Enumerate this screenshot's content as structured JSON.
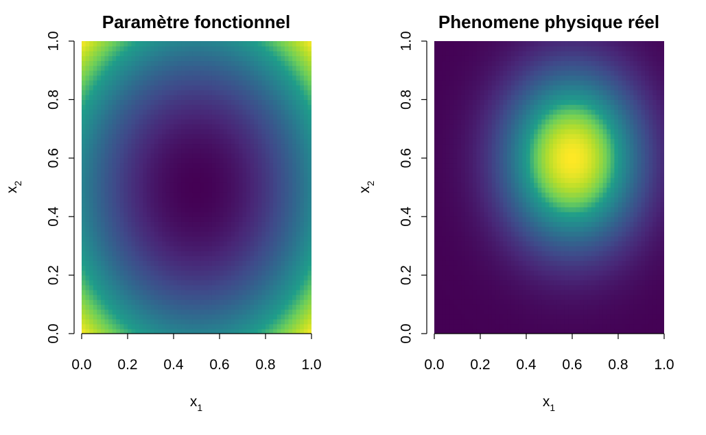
{
  "chart_data": [
    {
      "type": "heatmap",
      "title": "Paramètre fonctionnel",
      "xlabel": {
        "base": "x",
        "subscript": "1"
      },
      "ylabel": {
        "base": "x",
        "subscript": "2"
      },
      "xlim": [
        0,
        1
      ],
      "ylim": [
        0,
        1
      ],
      "x_ticks": [
        "0.0",
        "0.2",
        "0.4",
        "0.6",
        "0.8",
        "1.0"
      ],
      "y_ticks": [
        "0.0",
        "0.2",
        "0.4",
        "0.6",
        "0.8",
        "1.0"
      ],
      "colormap": "viridis",
      "field": {
        "kind": "radial_distance",
        "center": [
          0.5,
          0.5
        ],
        "shape": "minimum at center, maximum at corners"
      },
      "legend": false,
      "grid": false
    },
    {
      "type": "heatmap",
      "title": "Phenomene physique réel",
      "xlabel": {
        "base": "x",
        "subscript": "1"
      },
      "ylabel": {
        "base": "x",
        "subscript": "2"
      },
      "xlim": [
        0,
        1
      ],
      "ylim": [
        0,
        1
      ],
      "x_ticks": [
        "0.0",
        "0.2",
        "0.4",
        "0.6",
        "0.8",
        "1.0"
      ],
      "y_ticks": [
        "0.0",
        "0.2",
        "0.4",
        "0.6",
        "0.8",
        "1.0"
      ],
      "colormap": "viridis",
      "field": {
        "kind": "gaussian_bump",
        "center": [
          0.6,
          0.6
        ],
        "spread": 0.2,
        "shape": "maximum near (0.6, 0.6), minimum toward edges"
      },
      "legend": false,
      "grid": false
    }
  ],
  "colors": {
    "viridis": [
      "#440154",
      "#482777",
      "#3F4A8A",
      "#31678E",
      "#26838F",
      "#1F9D8A",
      "#6CCE5A",
      "#B6DE2B",
      "#FEE825"
    ]
  }
}
